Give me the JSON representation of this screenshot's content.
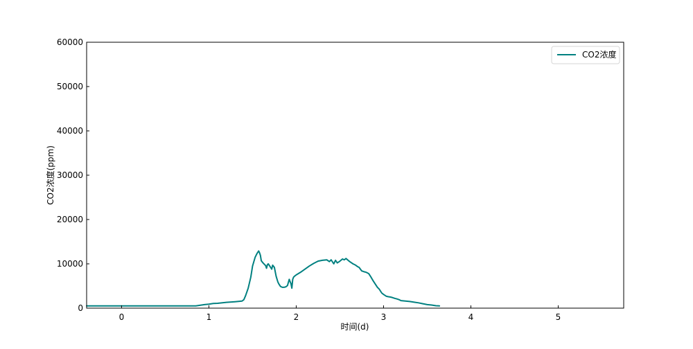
{
  "chart_data": {
    "type": "line",
    "title": "",
    "xlabel": "时间(d)",
    "ylabel": "CO2浓度(ppm)",
    "xlim": [
      -0.4,
      5.75
    ],
    "ylim": [
      0,
      60000
    ],
    "xticks": [
      0,
      1,
      2,
      3,
      4,
      5
    ],
    "yticks": [
      0,
      10000,
      20000,
      30000,
      40000,
      50000,
      60000
    ],
    "grid": false,
    "legend_position": "top-right",
    "series": [
      {
        "name": "CO2浓度",
        "color": "#008080",
        "x": [
          -0.4,
          0.0,
          0.5,
          0.85,
          0.95,
          1.0,
          1.05,
          1.1,
          1.2,
          1.3,
          1.38,
          1.4,
          1.42,
          1.45,
          1.48,
          1.5,
          1.53,
          1.55,
          1.57,
          1.58,
          1.59,
          1.6,
          1.62,
          1.64,
          1.65,
          1.66,
          1.67,
          1.68,
          1.7,
          1.72,
          1.73,
          1.75,
          1.77,
          1.79,
          1.8,
          1.82,
          1.84,
          1.86,
          1.88,
          1.9,
          1.92,
          1.93,
          1.94,
          1.95,
          1.96,
          1.97,
          1.98,
          2.0,
          2.05,
          2.1,
          2.15,
          2.2,
          2.25,
          2.3,
          2.35,
          2.38,
          2.4,
          2.43,
          2.45,
          2.47,
          2.5,
          2.53,
          2.55,
          2.57,
          2.6,
          2.62,
          2.65,
          2.68,
          2.7,
          2.72,
          2.75,
          2.78,
          2.8,
          2.83,
          2.85,
          2.88,
          2.9,
          2.93,
          2.95,
          2.98,
          3.0,
          3.03,
          3.05,
          3.08,
          3.1,
          3.13,
          3.15,
          3.18,
          3.2,
          3.25,
          3.3,
          3.35,
          3.4,
          3.45,
          3.5,
          3.55,
          3.6,
          3.64
        ],
        "values": [
          500,
          500,
          500,
          500,
          800,
          900,
          1050,
          1100,
          1300,
          1450,
          1600,
          1900,
          2800,
          4500,
          7000,
          9500,
          11500,
          12300,
          12900,
          12500,
          11900,
          10700,
          10200,
          9800,
          9600,
          9000,
          9800,
          10000,
          9400,
          8800,
          9700,
          9200,
          7200,
          5900,
          5500,
          4900,
          4700,
          4700,
          4800,
          5100,
          6500,
          6000,
          5500,
          4500,
          6500,
          7000,
          7200,
          7500,
          8100,
          8800,
          9500,
          10100,
          10600,
          10800,
          10900,
          10500,
          10900,
          10000,
          10800,
          10200,
          10600,
          11100,
          10900,
          11200,
          10700,
          10400,
          10000,
          9700,
          9400,
          9200,
          8400,
          8200,
          8100,
          7800,
          7200,
          6200,
          5600,
          4700,
          4300,
          3400,
          3100,
          2700,
          2600,
          2500,
          2400,
          2200,
          2100,
          1900,
          1700,
          1600,
          1500,
          1350,
          1200,
          1000,
          800,
          700,
          550,
          500
        ]
      }
    ]
  }
}
